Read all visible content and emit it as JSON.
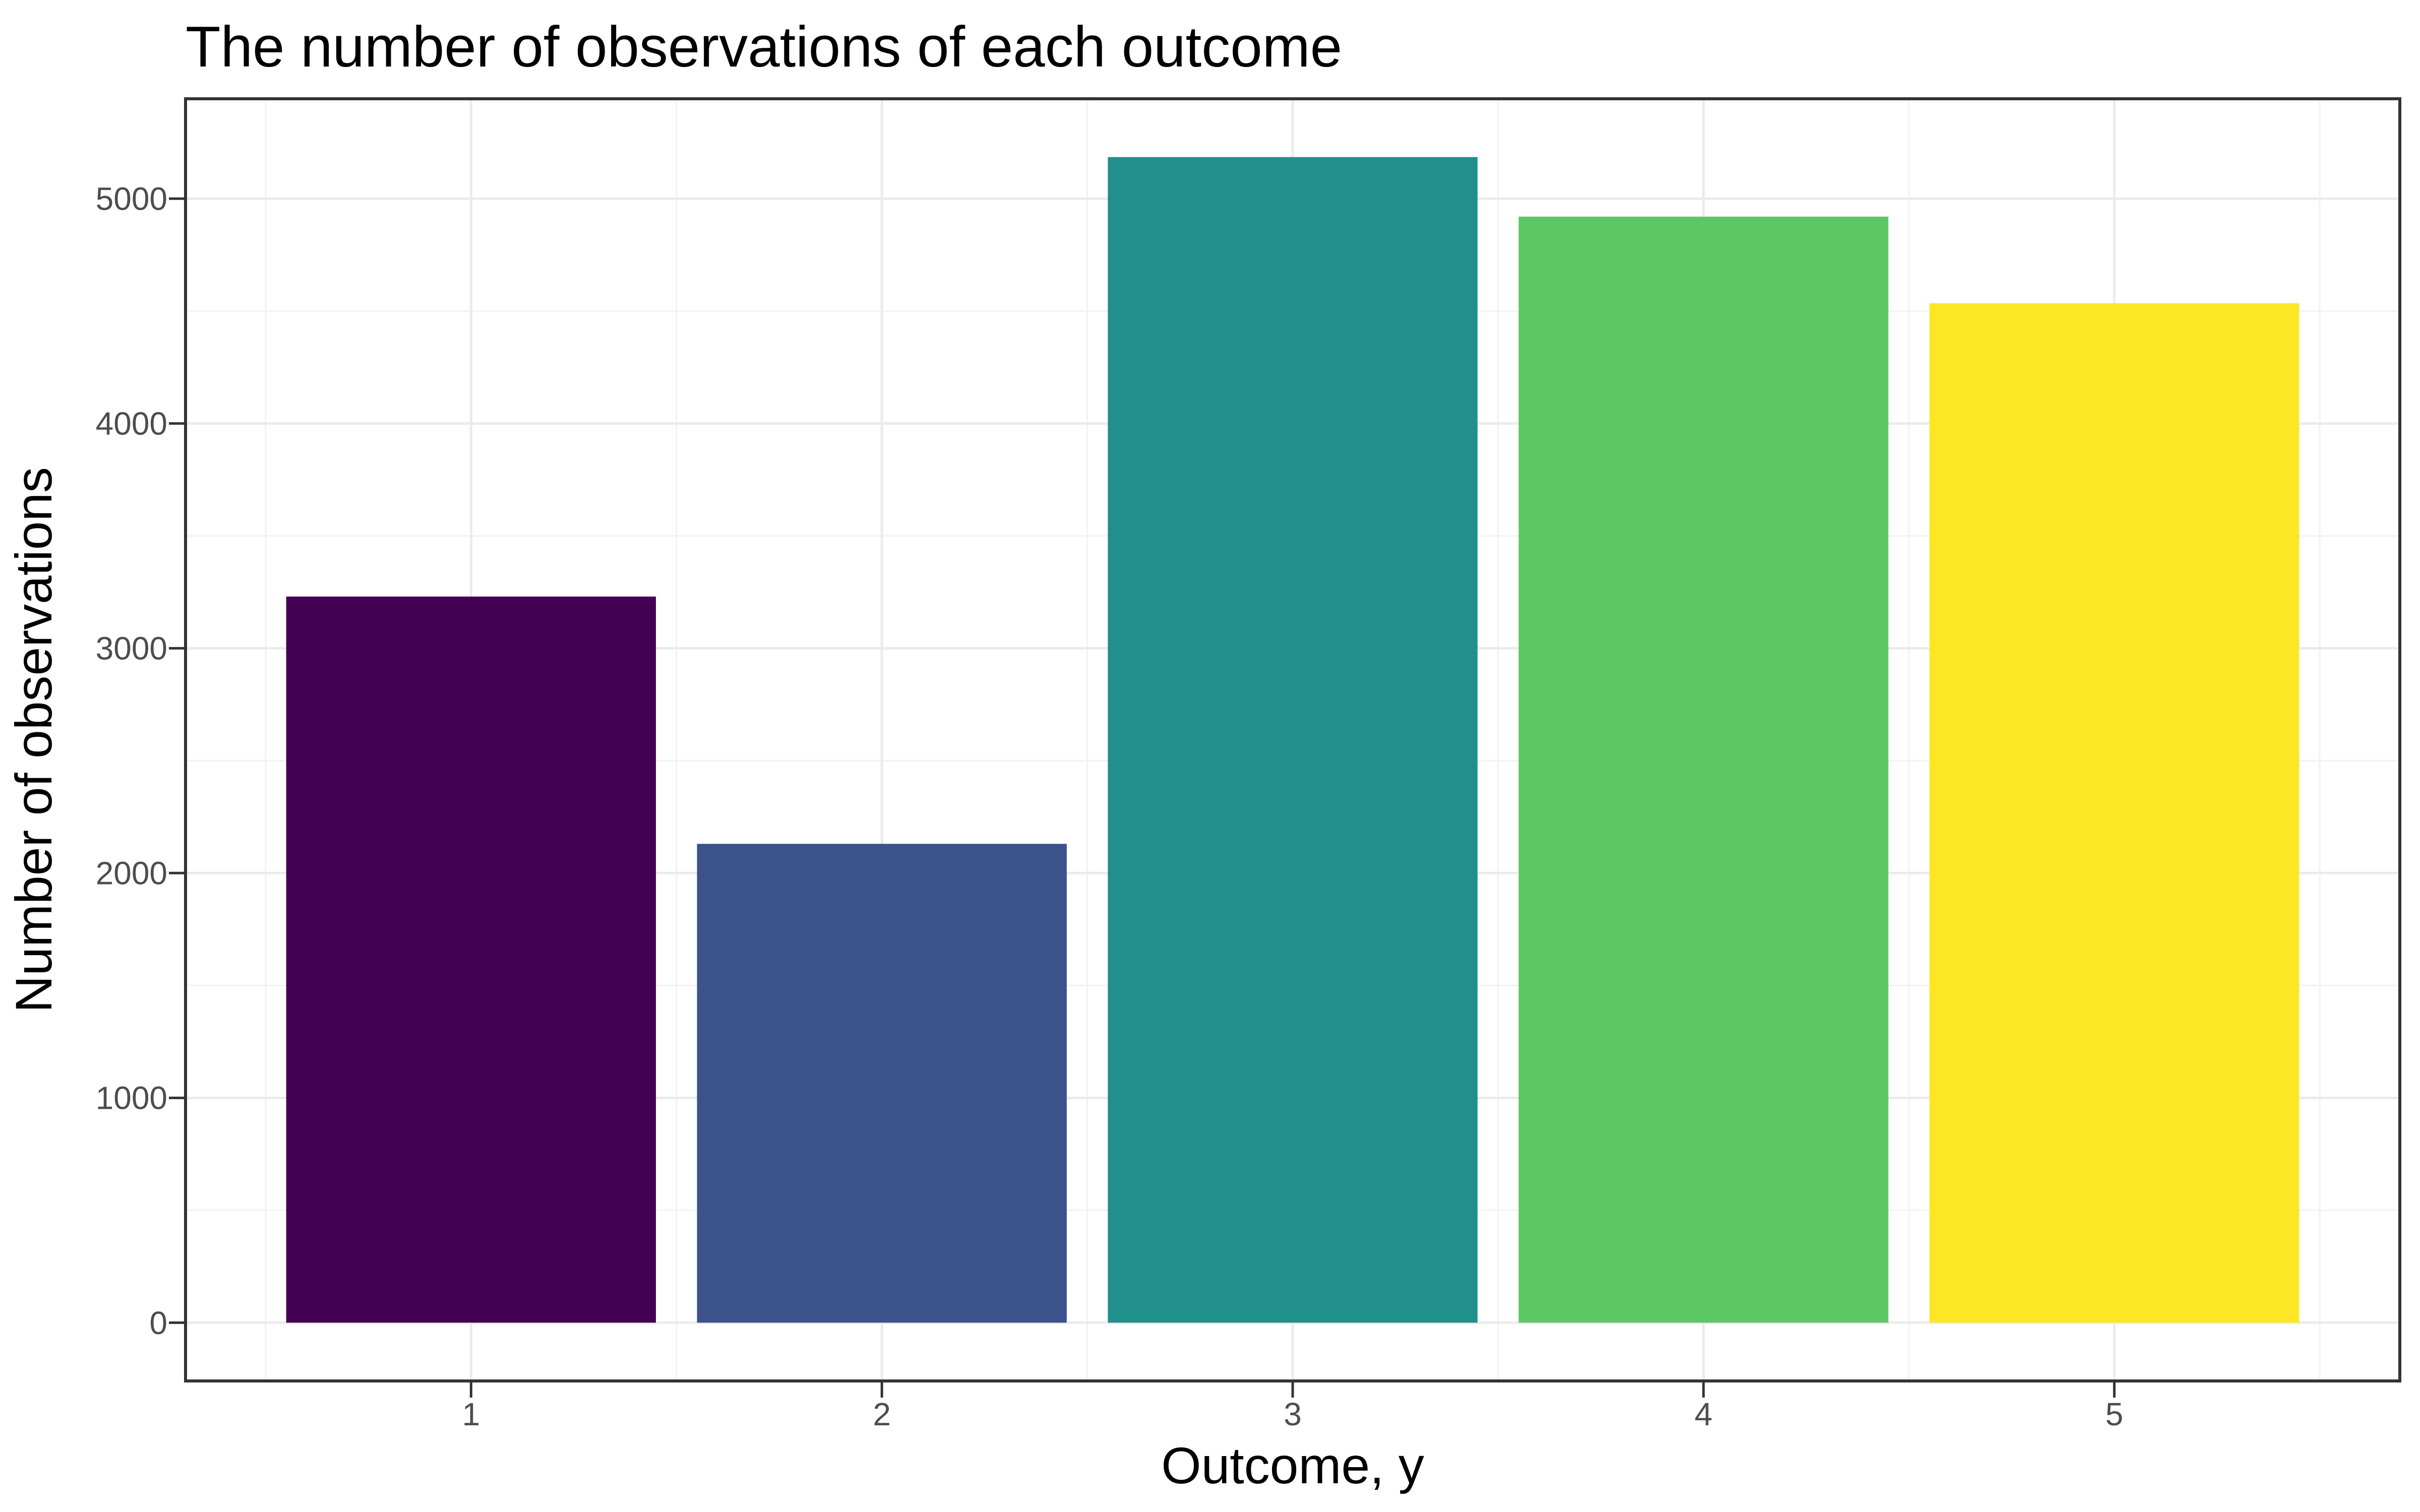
{
  "chart_data": {
    "type": "bar",
    "title": "The number of observations of each outcome",
    "xlabel": "Outcome, y",
    "ylabel": "Number of observations",
    "categories": [
      1,
      2,
      3,
      4,
      5
    ],
    "values": [
      3230,
      2130,
      5185,
      4920,
      4535
    ],
    "bar_colors": [
      "#440154",
      "#3B528B",
      "#21908C",
      "#5DC863",
      "#FDE725"
    ],
    "bar_width": 0.9,
    "yticks": [
      0,
      1000,
      2000,
      3000,
      4000,
      5000
    ],
    "ytick_labels": [
      "0",
      "1000",
      "2000",
      "3000",
      "4000",
      "5000"
    ],
    "xtick_labels": [
      "1",
      "2",
      "3",
      "4",
      "5"
    ],
    "y_minor_gridlines": [
      500,
      1500,
      2500,
      3500,
      4500
    ],
    "x_minor_gridlines": [
      0.5,
      1.5,
      2.5,
      3.5,
      4.5,
      5.5
    ],
    "xlim": [
      0.305,
      5.695
    ],
    "ylim": [
      -259.25,
      5444.25
    ],
    "grid": true,
    "legend": "none",
    "colors": {
      "background": "#FFFFFF",
      "panel_background": "#FFFFFF",
      "panel_border": "#333333",
      "tick_mark": "#333333",
      "tick_label": "#4D4D4D",
      "major_gridline": "#EBEBEB",
      "minor_gridline": "#F2F2F2",
      "title_text": "#000000",
      "axis_title_text": "#000000"
    }
  }
}
